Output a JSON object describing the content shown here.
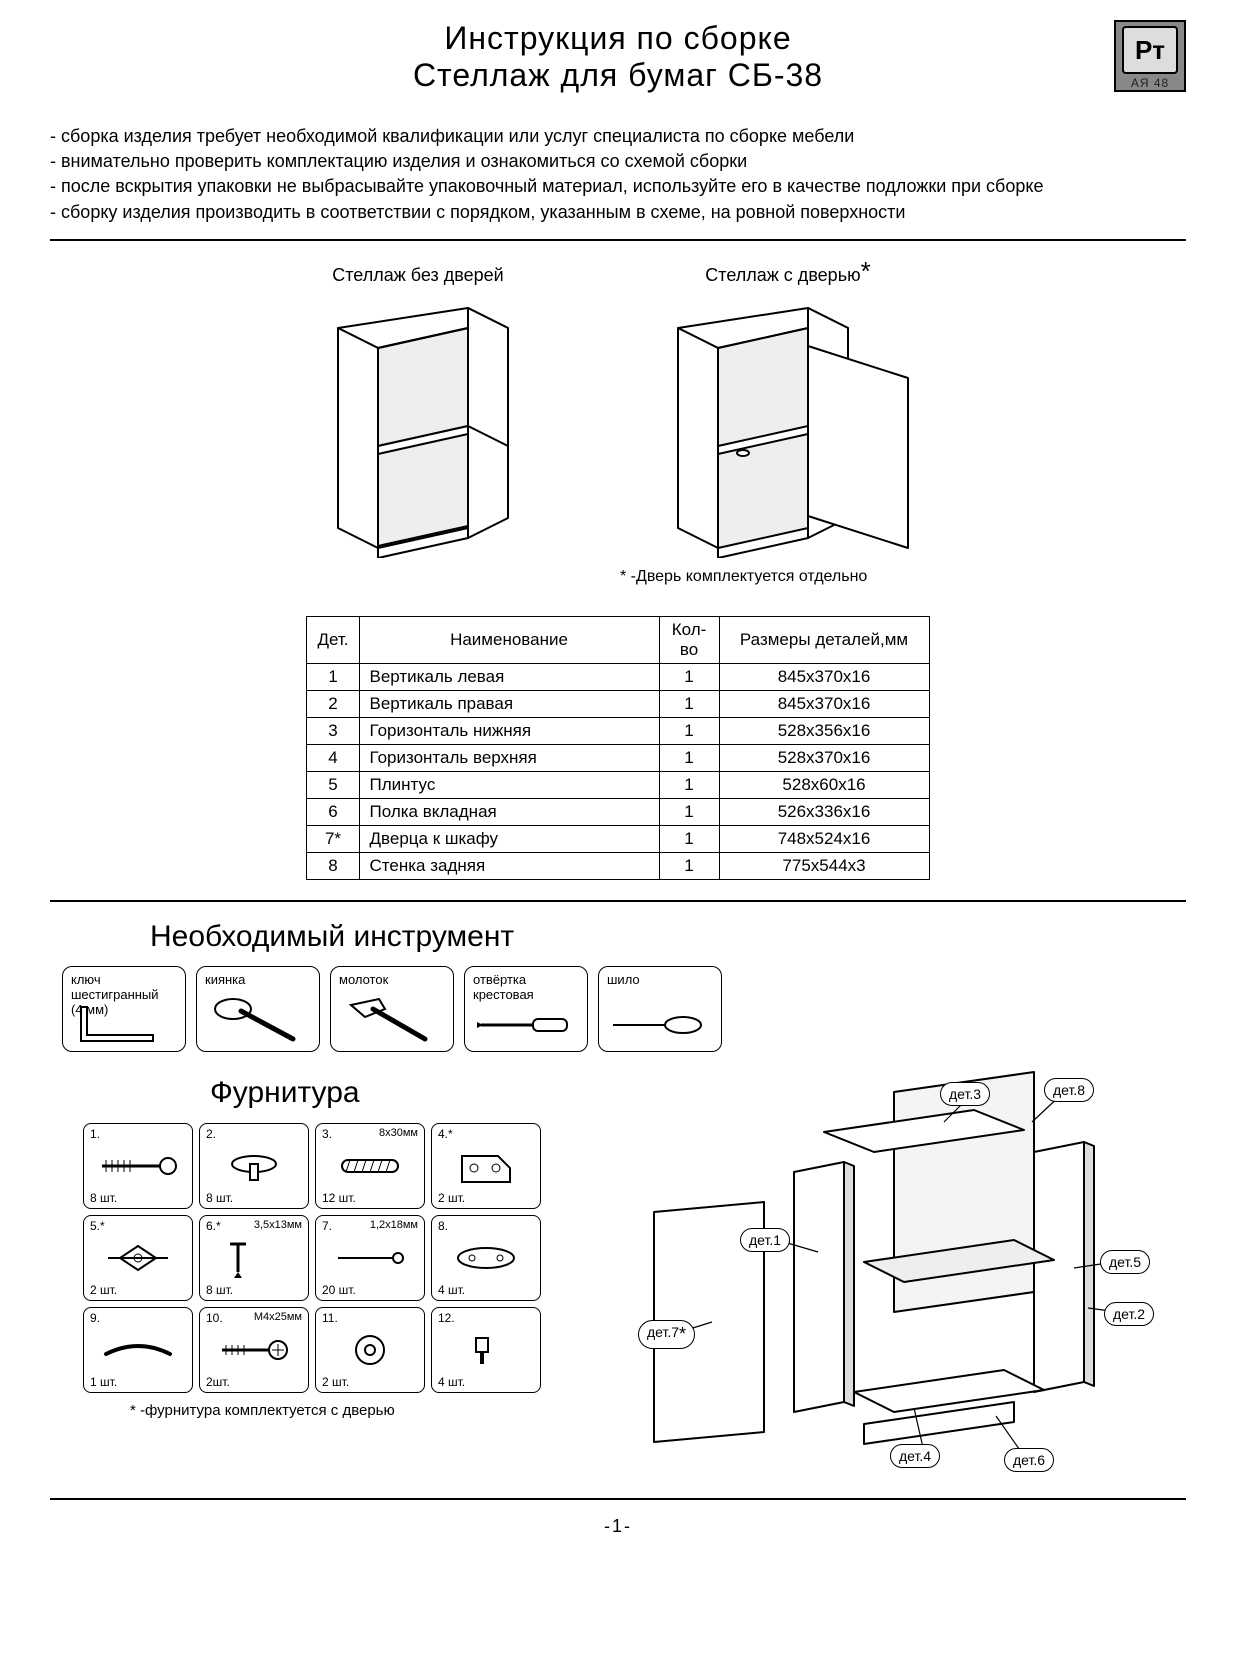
{
  "title_line1": "Инструкция по сборке",
  "title_line2": "Стеллаж для бумаг  СБ-38",
  "cert": {
    "mark": "Рт",
    "code": "АЯ 48"
  },
  "notes": [
    "- сборка изделия требует необходимой квалификации или услуг специалиста по сборке мебели",
    "- внимательно проверить комплектацию изделия и ознакомиться со схемой сборки",
    "- после вскрытия упаковки не выбрасывайте упаковочный материал, используйте его в качестве подложки при сборке",
    "- сборку изделия производить в соответствии с порядком, указанным в схеме, на ровной поверхности"
  ],
  "variant_a_label": "Стеллаж без дверей",
  "variant_b_label": "Стеллаж с дверью",
  "variant_b_star": "*",
  "door_footnote": "* -Дверь  комплектуется отдельно",
  "parts_table": {
    "headers": {
      "det": "Дет.",
      "name": "Наименование",
      "qty": "Кол-во",
      "dim": "Размеры деталей,мм"
    },
    "rows": [
      {
        "det": "1",
        "name": "Вертикаль левая",
        "qty": "1",
        "dim": "845х370х16"
      },
      {
        "det": "2",
        "name": "Вертикаль правая",
        "qty": "1",
        "dim": "845х370х16"
      },
      {
        "det": "3",
        "name": "Горизонталь нижняя",
        "qty": "1",
        "dim": "528х356х16"
      },
      {
        "det": "4",
        "name": "Горизонталь верхняя",
        "qty": "1",
        "dim": "528х370х16"
      },
      {
        "det": "5",
        "name": "Плинтус",
        "qty": "1",
        "dim": "528х60х16"
      },
      {
        "det": "6",
        "name": "Полка вкладная",
        "qty": "1",
        "dim": "526х336х16"
      },
      {
        "det": "7*",
        "name": "Дверца к шкафу",
        "qty": "1",
        "dim": "748х524х16"
      },
      {
        "det": "8",
        "name": "Стенка задняя",
        "qty": "1",
        "dim": "775х544х3"
      }
    ]
  },
  "tools_title": "Необходимый инструмент",
  "tools": [
    {
      "label": "ключ\nшестигранный\n(4 мм)"
    },
    {
      "label": "киянка"
    },
    {
      "label": "молоток"
    },
    {
      "label": "отвёртка\nкрестовая"
    },
    {
      "label": "шило"
    }
  ],
  "hardware_title": "Фурнитура",
  "hardware": [
    {
      "num": "1.",
      "dim": "",
      "qty": "8 шт."
    },
    {
      "num": "2.",
      "dim": "",
      "qty": "8 шт."
    },
    {
      "num": "3.",
      "dim": "8х30мм",
      "qty": "12 шт."
    },
    {
      "num": "4.*",
      "dim": "",
      "qty": "2 шт."
    },
    {
      "num": "5.*",
      "dim": "",
      "qty": "2 шт."
    },
    {
      "num": "6.*",
      "dim": "3,5х13мм",
      "qty": "8 шт."
    },
    {
      "num": "7.",
      "dim": "1,2х18мм",
      "qty": "20 шт."
    },
    {
      "num": "8.",
      "dim": "",
      "qty": "4 шт."
    },
    {
      "num": "9.",
      "dim": "",
      "qty": "1 шт."
    },
    {
      "num": "10.",
      "dim": "М4х25мм",
      "qty": "2шт."
    },
    {
      "num": "11.",
      "dim": "",
      "qty": "2 шт."
    },
    {
      "num": "12.",
      "dim": "",
      "qty": "4 шт."
    }
  ],
  "hardware_footnote": "* -фурнитура комплектуется с дверью",
  "exploded_labels": {
    "d1": "дет.1",
    "d2": "дет.2",
    "d3": "дет.3",
    "d4": "дет.4",
    "d5": "дет.5",
    "d6": "дет.6",
    "d7": "дет.7",
    "d8": "дет.8",
    "d7star": "*"
  },
  "page_number": "-1-"
}
